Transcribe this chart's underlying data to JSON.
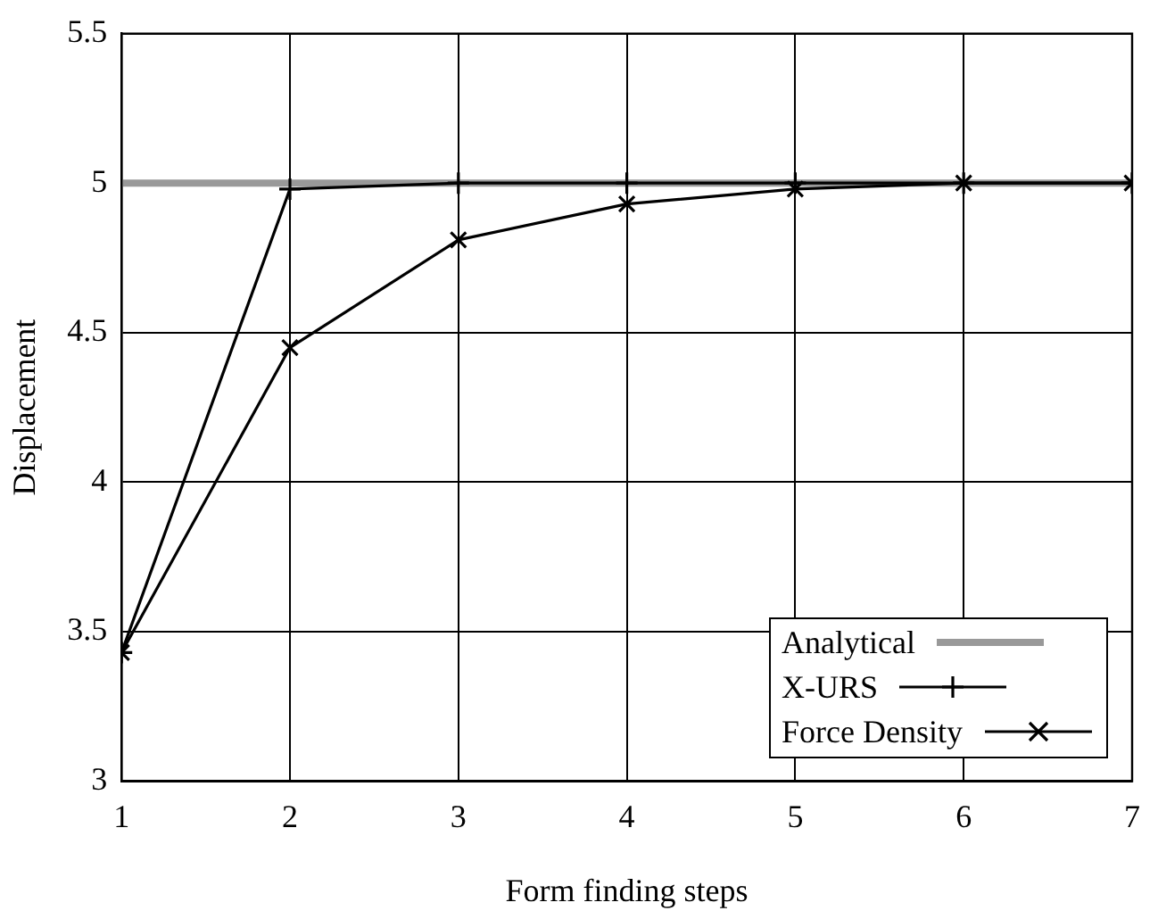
{
  "chart_data": {
    "type": "line",
    "xlabel": "Form finding steps",
    "ylabel": "Displacement",
    "x": [
      1,
      2,
      3,
      4,
      5,
      6,
      7
    ],
    "series": [
      {
        "name": "Analytical",
        "color": "#999999",
        "values": [
          5,
          5,
          5,
          5,
          5,
          5,
          5
        ],
        "marker": "none"
      },
      {
        "name": "X-URS",
        "color": "#000000",
        "values": [
          3.43,
          4.98,
          5.0,
          5.0,
          5.0,
          5.0,
          5.0
        ],
        "marker": "cross"
      },
      {
        "name": "Force Density",
        "color": "#000000",
        "values": [
          3.43,
          4.45,
          4.81,
          4.93,
          4.98,
          5.0,
          5.0
        ],
        "marker": "x"
      }
    ],
    "xlim": [
      1,
      7
    ],
    "xticks": [
      1,
      2,
      3,
      4,
      5,
      6,
      7
    ],
    "ylim": [
      3,
      5.5
    ],
    "yticks": [
      3,
      3.5,
      4,
      4.5,
      5,
      5.5
    ],
    "grid": true,
    "legend": "bottom right",
    "line_style": "solid"
  }
}
